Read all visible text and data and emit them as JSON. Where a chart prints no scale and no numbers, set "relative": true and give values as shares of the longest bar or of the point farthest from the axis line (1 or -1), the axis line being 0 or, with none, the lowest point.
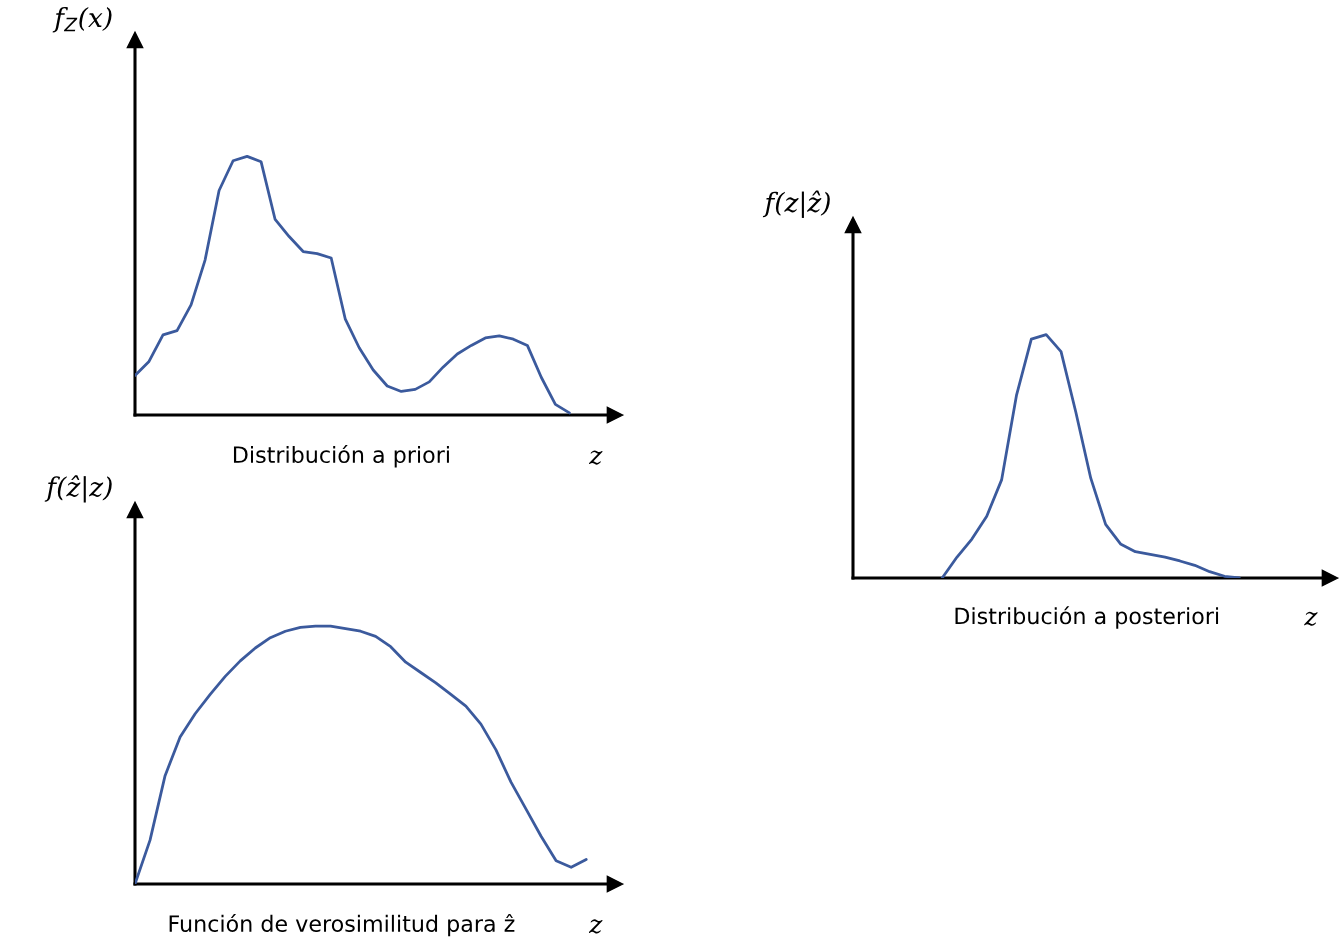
{
  "chart_data": [
    {
      "type": "line",
      "relative": true,
      "title": "Distribución a priori",
      "xlabel": "z",
      "ylabel": "f$_{Z}$(x)",
      "color": "#3b5a9d",
      "line_style": "solid",
      "marker": "none",
      "legend": false,
      "categories": [
        null,
        null,
        null,
        null,
        null,
        null,
        null,
        null,
        null,
        null,
        null,
        null,
        null,
        null,
        null,
        null,
        null,
        null,
        null,
        null,
        null,
        null,
        null,
        null,
        null,
        null,
        null,
        null,
        null,
        null,
        null,
        null
      ],
      "values": [
        0.153,
        0.207,
        0.31,
        0.326,
        0.426,
        0.599,
        0.868,
        0.983,
        1.0,
        0.979,
        0.756,
        0.69,
        0.632,
        0.624,
        0.607,
        0.372,
        0.26,
        0.174,
        0.112,
        0.091,
        0.099,
        0.128,
        0.186,
        0.236,
        0.269,
        0.298,
        0.306,
        0.293,
        0.269,
        0.145,
        0.041,
        0.008
      ]
    },
    {
      "type": "line",
      "relative": true,
      "title": "Función de verosimilitud para ẑ",
      "xlabel": "z",
      "ylabel": "f(ẑ|z)",
      "color": "#3b5a9d",
      "line_style": "solid",
      "marker": "none",
      "legend": false,
      "categories": [
        null,
        null,
        null,
        null,
        null,
        null,
        null,
        null,
        null,
        null,
        null,
        null,
        null,
        null,
        null,
        null,
        null,
        null,
        null,
        null,
        null,
        null,
        null,
        null,
        null,
        null,
        null,
        null,
        null,
        null,
        null
      ],
      "values": [
        0,
        0.17,
        0.42,
        0.57,
        0.66,
        0.735,
        0.805,
        0.865,
        0.915,
        0.955,
        0.98,
        0.995,
        1,
        1,
        0.99,
        0.98,
        0.96,
        0.92,
        0.86,
        0.82,
        0.78,
        0.735,
        0.69,
        0.62,
        0.52,
        0.395,
        0.29,
        0.185,
        0.09,
        0.065,
        0.095
      ]
    },
    {
      "type": "line",
      "relative": true,
      "title": "Distribución a posteriori",
      "xlabel": "z",
      "ylabel": "f(z|ẑ)",
      "color": "#3b5a9d",
      "line_style": "solid",
      "marker": "none",
      "legend": false,
      "categories": [
        null,
        null,
        null,
        null,
        null,
        null,
        null,
        null,
        null,
        null,
        null,
        null,
        null,
        null,
        null,
        null,
        null,
        null,
        null,
        null,
        null,
        null,
        null,
        null,
        null,
        null,
        null
      ],
      "values": [
        null,
        null,
        null,
        null,
        null,
        null,
        0,
        0.086,
        0.16,
        0.254,
        0.403,
        0.75,
        0.981,
        1,
        0.93,
        0.68,
        0.41,
        0.22,
        0.14,
        0.108,
        0.097,
        0.086,
        0.07,
        0.052,
        0.026,
        0.007,
        0
      ]
    }
  ]
}
